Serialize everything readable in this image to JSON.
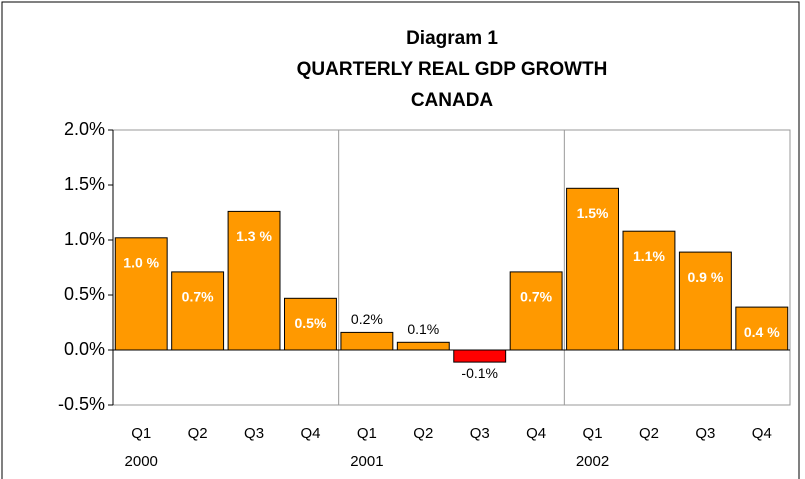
{
  "chart_data": {
    "type": "bar",
    "title_lines": [
      "Diagram 1",
      "QUARTERLY REAL GDP GROWTH",
      "CANADA"
    ],
    "categories": [
      "Q1",
      "Q2",
      "Q3",
      "Q4",
      "Q1",
      "Q2",
      "Q3",
      "Q4",
      "Q1",
      "Q2",
      "Q3",
      "Q4"
    ],
    "years": [
      "2000",
      null,
      null,
      null,
      "2001",
      null,
      null,
      null,
      "2002",
      null,
      null,
      null
    ],
    "values": [
      1.02,
      0.71,
      1.26,
      0.47,
      0.16,
      0.07,
      -0.11,
      0.71,
      1.47,
      1.08,
      0.89,
      0.39
    ],
    "value_labels": [
      "1.0 %",
      "0.7%",
      "1.3 %",
      "0.5%",
      "0.2%",
      "0.1%",
      "-0.1%",
      "0.7%",
      "1.5%",
      "1.1%",
      "0.9 %",
      "0.4 %"
    ],
    "color": "#ff9900",
    "negative_color": "#ff0000",
    "ylim": [
      -0.5,
      2.0
    ],
    "yticks": [
      {
        "value": -0.5,
        "label": "-0.5%"
      },
      {
        "value": 0,
        "label": "0.0%"
      },
      {
        "value": 0.5,
        "label": "0.5%"
      },
      {
        "value": 1.0,
        "label": "1.0%"
      },
      {
        "value": 1.5,
        "label": "1.5%"
      },
      {
        "value": 2.0,
        "label": "2.0%"
      }
    ]
  }
}
